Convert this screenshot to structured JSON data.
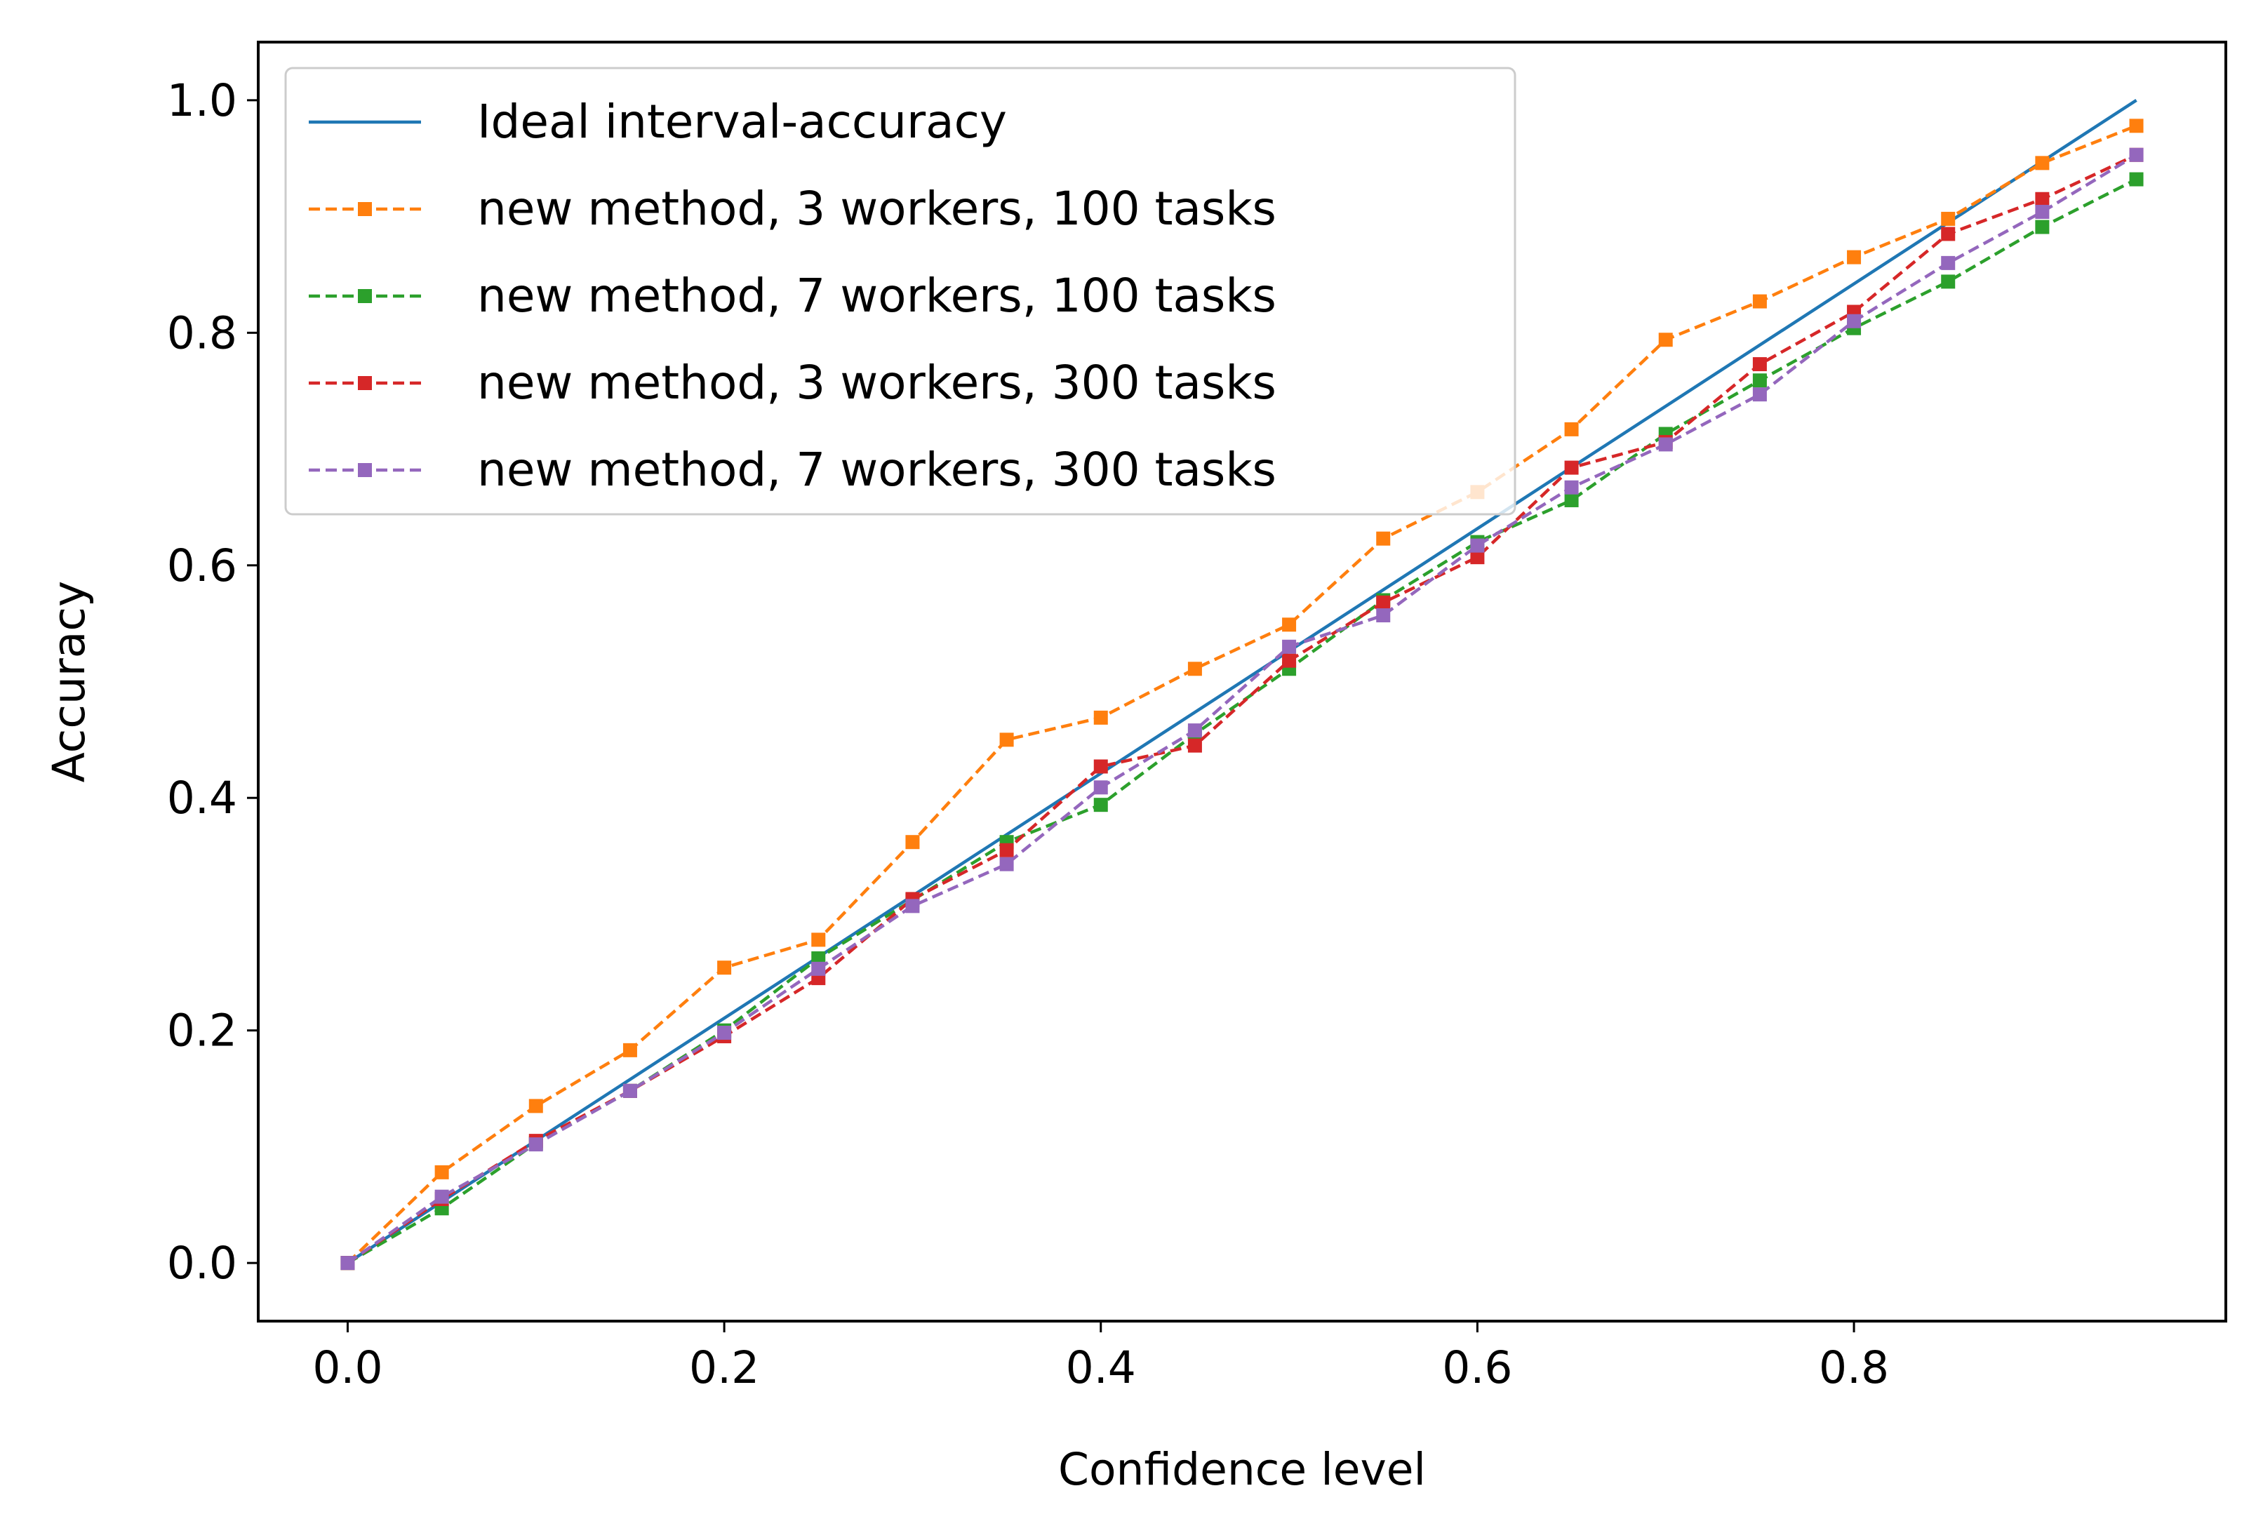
{
  "chart_data": {
    "type": "line",
    "title": "",
    "xlabel": "Confidence level",
    "ylabel": "Accuracy",
    "xlim": [
      -0.0475,
      0.9975
    ],
    "ylim": [
      -0.05,
      1.05
    ],
    "xticks": [
      "0.0",
      "0.2",
      "0.4",
      "0.6",
      "0.8"
    ],
    "yticks": [
      "0.0",
      "0.2",
      "0.4",
      "0.6",
      "0.8",
      "1.0"
    ],
    "grid": false,
    "legend_position": "top-left",
    "x": [
      0.0,
      0.05,
      0.1,
      0.15,
      0.2,
      0.25,
      0.3,
      0.35,
      0.4,
      0.45,
      0.5,
      0.55,
      0.6,
      0.65,
      0.7,
      0.75,
      0.8,
      0.85,
      0.9,
      0.95
    ],
    "ideal": {
      "name": "Ideal interval-accuracy",
      "x": [
        0.0,
        0.95
      ],
      "values": [
        0.0,
        1.0
      ],
      "color": "#1f77b4"
    },
    "series": [
      {
        "name": "new method, 3 workers, 100 tasks",
        "color": "#ff7f0e",
        "values": [
          0.0,
          0.078,
          0.135,
          0.183,
          0.254,
          0.278,
          0.362,
          0.45,
          0.469,
          0.511,
          0.549,
          0.623,
          0.663,
          0.717,
          0.794,
          0.827,
          0.865,
          0.898,
          0.946,
          0.978
        ]
      },
      {
        "name": "new method, 7 workers, 100 tasks",
        "color": "#2ca02c",
        "values": [
          0.0,
          0.047,
          0.103,
          0.148,
          0.2,
          0.262,
          0.312,
          0.362,
          0.394,
          0.455,
          0.511,
          0.57,
          0.62,
          0.656,
          0.713,
          0.759,
          0.804,
          0.844,
          0.891,
          0.932
        ]
      },
      {
        "name": "new method, 3 workers, 300 tasks",
        "color": "#d62728",
        "values": [
          0.0,
          0.055,
          0.105,
          0.148,
          0.195,
          0.245,
          0.313,
          0.355,
          0.427,
          0.445,
          0.518,
          0.568,
          0.607,
          0.684,
          0.706,
          0.773,
          0.818,
          0.885,
          0.915,
          0.953
        ]
      },
      {
        "name": "new method, 7 workers, 300 tasks",
        "color": "#9467bd",
        "values": [
          0.0,
          0.057,
          0.102,
          0.148,
          0.198,
          0.253,
          0.307,
          0.343,
          0.409,
          0.458,
          0.53,
          0.557,
          0.617,
          0.667,
          0.704,
          0.747,
          0.81,
          0.86,
          0.904,
          0.953
        ]
      }
    ]
  }
}
